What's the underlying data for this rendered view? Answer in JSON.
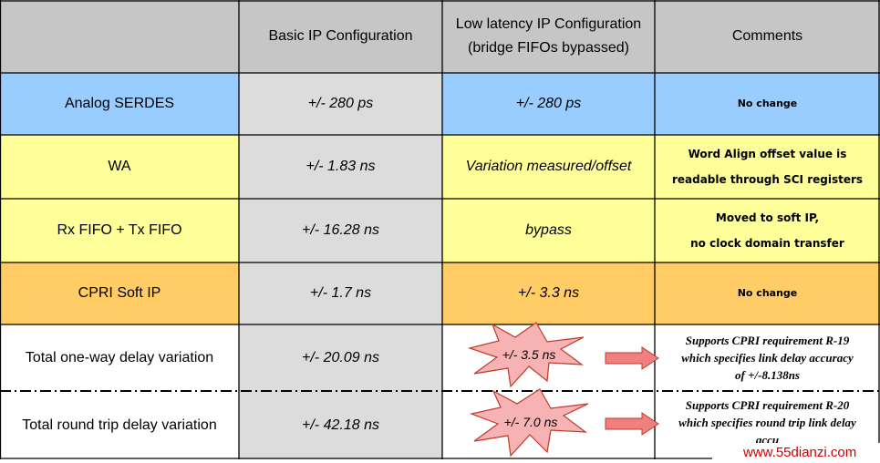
{
  "header": {
    "col1": "",
    "col2": "Basic IP Configuration",
    "col3_line1": "Low latency IP Configuration",
    "col3_line2": "(bridge FIFOs bypassed)",
    "col4": "Comments"
  },
  "rows": [
    {
      "label": "Analog SERDES",
      "basic": "+/- 280 ps",
      "low_latency": "+/- 280 ps",
      "comment": [
        "No change"
      ]
    },
    {
      "label": "WA",
      "basic": "+/- 1.83 ns",
      "low_latency": "Variation measured/offset",
      "comment": [
        "Word Align offset value is",
        "readable through SCI registers"
      ]
    },
    {
      "label": "Rx FIFO + Tx FIFO",
      "basic": "+/- 16.28 ns",
      "low_latency": "bypass",
      "comment": [
        "Moved to soft IP,",
        "no clock domain transfer"
      ]
    },
    {
      "label": "CPRI Soft IP",
      "basic": "+/- 1.7 ns",
      "low_latency": "+/- 3.3 ns",
      "comment": [
        "No change"
      ]
    },
    {
      "label": "Total one-way delay variation",
      "basic": "+/- 20.09 ns",
      "low_latency": "+/- 3.5 ns",
      "comment": [
        "Supports CPRI requirement R-19",
        "which specifies link delay accuracy",
        "of +/-8.138ns"
      ]
    },
    {
      "label": "Total round trip delay variation",
      "basic": "+/- 42.18 ns",
      "low_latency": "+/- 7.0 ns",
      "comment": [
        "Supports CPRI requirement R-20",
        "which specifies round trip link delay",
        "accu"
      ]
    }
  ],
  "watermark": "www.55dianzi.com",
  "colors": {
    "header": "#c6c6c6",
    "blue_row": "#99ccff",
    "yellow_row": "#ffff99",
    "orange_row": "#ffcc66",
    "basic_col": "#dcdcdc",
    "star_fill": "#f7b3b3",
    "arrow_fill": "#f08080",
    "watermark": "#cc0000"
  }
}
